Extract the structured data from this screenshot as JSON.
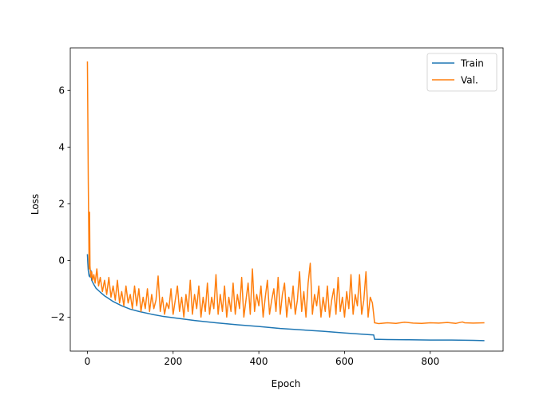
{
  "chart_data": {
    "type": "line",
    "title": "",
    "xlabel": "Epoch",
    "ylabel": "Loss",
    "xlim": [
      -40,
      970
    ],
    "ylim": [
      -3.2,
      7.5
    ],
    "x_ticks": [
      0,
      200,
      400,
      600,
      800
    ],
    "y_ticks": [
      -2,
      0,
      2,
      4,
      6
    ],
    "x_tick_labels": [
      "0",
      "200",
      "400",
      "600",
      "800"
    ],
    "y_tick_labels": [
      "−2",
      "0",
      "2",
      "4",
      "6"
    ],
    "grid": false,
    "legend_position": "top-right",
    "series": [
      {
        "name": "Train",
        "color": "#1f77b4",
        "points": [
          [
            0,
            0.2
          ],
          [
            1,
            -0.1
          ],
          [
            2,
            -0.35
          ],
          [
            4,
            -0.55
          ],
          [
            6,
            -0.58
          ],
          [
            8,
            -0.35
          ],
          [
            10,
            -0.7
          ],
          [
            15,
            -0.85
          ],
          [
            20,
            -0.98
          ],
          [
            30,
            -1.12
          ],
          [
            40,
            -1.25
          ],
          [
            50,
            -1.35
          ],
          [
            60,
            -1.45
          ],
          [
            80,
            -1.6
          ],
          [
            100,
            -1.72
          ],
          [
            120,
            -1.8
          ],
          [
            150,
            -1.9
          ],
          [
            175,
            -1.97
          ],
          [
            200,
            -2.02
          ],
          [
            250,
            -2.12
          ],
          [
            300,
            -2.2
          ],
          [
            350,
            -2.27
          ],
          [
            400,
            -2.33
          ],
          [
            450,
            -2.4
          ],
          [
            500,
            -2.45
          ],
          [
            550,
            -2.5
          ],
          [
            600,
            -2.56
          ],
          [
            640,
            -2.6
          ],
          [
            668,
            -2.63
          ],
          [
            670,
            -2.78
          ],
          [
            700,
            -2.79
          ],
          [
            750,
            -2.8
          ],
          [
            800,
            -2.81
          ],
          [
            850,
            -2.81
          ],
          [
            900,
            -2.82
          ],
          [
            925,
            -2.83
          ]
        ]
      },
      {
        "name": "Val.",
        "color": "#ff7f0e",
        "points": [
          [
            0,
            7.0
          ],
          [
            1,
            5.0
          ],
          [
            2,
            2.8
          ],
          [
            3,
            1.2
          ],
          [
            4,
            -0.3
          ],
          [
            5,
            1.7
          ],
          [
            6,
            -0.2
          ],
          [
            8,
            -0.6
          ],
          [
            10,
            -0.4
          ],
          [
            12,
            -0.7
          ],
          [
            15,
            -0.5
          ],
          [
            18,
            -0.8
          ],
          [
            22,
            -0.3
          ],
          [
            26,
            -0.9
          ],
          [
            30,
            -0.6
          ],
          [
            35,
            -1.1
          ],
          [
            40,
            -0.7
          ],
          [
            45,
            -1.2
          ],
          [
            50,
            -0.6
          ],
          [
            55,
            -1.3
          ],
          [
            60,
            -0.9
          ],
          [
            65,
            -1.4
          ],
          [
            70,
            -0.7
          ],
          [
            75,
            -1.5
          ],
          [
            80,
            -1.1
          ],
          [
            85,
            -1.6
          ],
          [
            90,
            -0.9
          ],
          [
            95,
            -1.5
          ],
          [
            100,
            -1.2
          ],
          [
            105,
            -1.7
          ],
          [
            110,
            -0.9
          ],
          [
            115,
            -1.6
          ],
          [
            120,
            -1.0
          ],
          [
            125,
            -1.8
          ],
          [
            130,
            -1.3
          ],
          [
            135,
            -1.7
          ],
          [
            140,
            -1.0
          ],
          [
            145,
            -1.8
          ],
          [
            150,
            -1.2
          ],
          [
            155,
            -1.7
          ],
          [
            160,
            -1.4
          ],
          [
            165,
            -0.55
          ],
          [
            170,
            -1.8
          ],
          [
            175,
            -1.3
          ],
          [
            180,
            -1.9
          ],
          [
            185,
            -1.5
          ],
          [
            190,
            -1.7
          ],
          [
            195,
            -1.0
          ],
          [
            200,
            -1.9
          ],
          [
            205,
            -1.4
          ],
          [
            210,
            -0.9
          ],
          [
            215,
            -1.8
          ],
          [
            220,
            -1.3
          ],
          [
            225,
            -2.0
          ],
          [
            230,
            -1.2
          ],
          [
            235,
            -1.8
          ],
          [
            240,
            -0.7
          ],
          [
            245,
            -1.9
          ],
          [
            250,
            -1.2
          ],
          [
            255,
            -1.7
          ],
          [
            260,
            -0.9
          ],
          [
            265,
            -2.0
          ],
          [
            270,
            -1.3
          ],
          [
            275,
            -1.8
          ],
          [
            280,
            -0.8
          ],
          [
            285,
            -1.9
          ],
          [
            290,
            -1.3
          ],
          [
            295,
            -1.7
          ],
          [
            300,
            -0.5
          ],
          [
            305,
            -1.9
          ],
          [
            310,
            -1.2
          ],
          [
            315,
            -1.8
          ],
          [
            320,
            -0.9
          ],
          [
            325,
            -2.0
          ],
          [
            330,
            -1.3
          ],
          [
            335,
            -1.8
          ],
          [
            340,
            -0.8
          ],
          [
            345,
            -1.9
          ],
          [
            350,
            -1.2
          ],
          [
            355,
            -1.7
          ],
          [
            360,
            -0.6
          ],
          [
            365,
            -2.0
          ],
          [
            370,
            -1.4
          ],
          [
            375,
            -0.8
          ],
          [
            380,
            -1.9
          ],
          [
            385,
            -0.3
          ],
          [
            390,
            -1.8
          ],
          [
            395,
            -1.2
          ],
          [
            400,
            -1.6
          ],
          [
            405,
            -0.9
          ],
          [
            410,
            -2.0
          ],
          [
            415,
            -1.3
          ],
          [
            420,
            -0.7
          ],
          [
            425,
            -1.9
          ],
          [
            430,
            -1.4
          ],
          [
            435,
            -1.0
          ],
          [
            440,
            -1.8
          ],
          [
            445,
            -0.6
          ],
          [
            450,
            -1.9
          ],
          [
            455,
            -1.2
          ],
          [
            460,
            -0.8
          ],
          [
            465,
            -2.0
          ],
          [
            470,
            -1.3
          ],
          [
            475,
            -1.7
          ],
          [
            480,
            -0.9
          ],
          [
            485,
            -1.9
          ],
          [
            490,
            -1.4
          ],
          [
            495,
            -0.4
          ],
          [
            500,
            -1.8
          ],
          [
            505,
            -1.1
          ],
          [
            510,
            -2.0
          ],
          [
            515,
            -0.8
          ],
          [
            520,
            -0.1
          ],
          [
            525,
            -1.9
          ],
          [
            530,
            -1.2
          ],
          [
            535,
            -1.6
          ],
          [
            540,
            -0.9
          ],
          [
            545,
            -2.0
          ],
          [
            550,
            -1.3
          ],
          [
            555,
            -1.8
          ],
          [
            560,
            -0.9
          ],
          [
            565,
            -2.0
          ],
          [
            570,
            -1.4
          ],
          [
            575,
            -1.0
          ],
          [
            580,
            -1.9
          ],
          [
            585,
            -0.6
          ],
          [
            590,
            -1.8
          ],
          [
            595,
            -1.3
          ],
          [
            600,
            -2.0
          ],
          [
            605,
            -1.1
          ],
          [
            610,
            -1.7
          ],
          [
            615,
            -0.5
          ],
          [
            620,
            -1.9
          ],
          [
            625,
            -1.2
          ],
          [
            630,
            -1.6
          ],
          [
            635,
            -0.5
          ],
          [
            640,
            -1.9
          ],
          [
            645,
            -1.4
          ],
          [
            650,
            -0.4
          ],
          [
            655,
            -2.0
          ],
          [
            660,
            -1.3
          ],
          [
            665,
            -1.5
          ],
          [
            668,
            -1.9
          ],
          [
            670,
            -2.2
          ],
          [
            680,
            -2.23
          ],
          [
            700,
            -2.2
          ],
          [
            720,
            -2.22
          ],
          [
            740,
            -2.18
          ],
          [
            760,
            -2.21
          ],
          [
            780,
            -2.22
          ],
          [
            800,
            -2.2
          ],
          [
            820,
            -2.21
          ],
          [
            840,
            -2.19
          ],
          [
            860,
            -2.22
          ],
          [
            875,
            -2.17
          ],
          [
            880,
            -2.2
          ],
          [
            900,
            -2.21
          ],
          [
            925,
            -2.2
          ]
        ]
      }
    ]
  }
}
